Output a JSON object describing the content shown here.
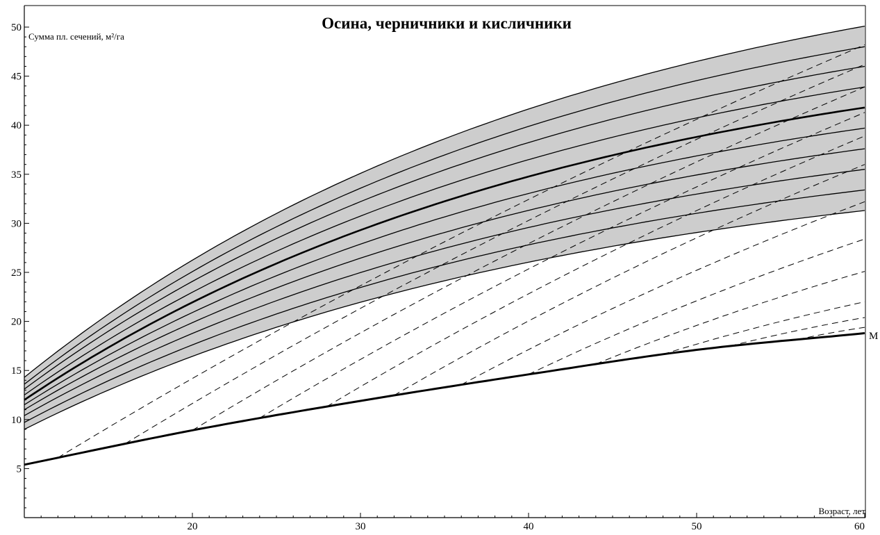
{
  "chart_data": {
    "type": "line",
    "title": "Осина, черничники и кисличники",
    "ylabel": "Сумма пл. сечений, м²/га",
    "xlabel": "Возраст, лет",
    "xlim": [
      10,
      60
    ],
    "ylim": [
      0,
      50
    ],
    "x_ticks": [
      20,
      30,
      40,
      50,
      60
    ],
    "y_ticks": [
      5,
      10,
      15,
      20,
      25,
      30,
      35,
      40,
      45,
      50
    ],
    "grid": false,
    "shaded_region": {
      "color": "#c4c4c4"
    },
    "lower_bound": {
      "name": "M",
      "x": [
        10,
        20,
        30,
        40,
        50,
        60
      ],
      "values": [
        5.4,
        8.9,
        11.9,
        14.6,
        17.1,
        18.8
      ]
    },
    "solid_series": [
      {
        "start": 9.0,
        "end": 31.3,
        "bold": false
      },
      {
        "start": 9.7,
        "end": 33.4,
        "bold": false
      },
      {
        "start": 10.4,
        "end": 35.5,
        "bold": false
      },
      {
        "start": 11.0,
        "end": 37.6,
        "bold": false
      },
      {
        "start": 11.5,
        "end": 39.7,
        "bold": false
      },
      {
        "start": 12.0,
        "end": 41.8,
        "bold": true
      },
      {
        "start": 12.5,
        "end": 43.9,
        "bold": false
      },
      {
        "start": 13.1,
        "end": 46.0,
        "bold": false
      },
      {
        "start": 13.6,
        "end": 48.0,
        "bold": false
      },
      {
        "start": 14.3,
        "end": 50.1,
        "bold": false
      }
    ],
    "dashed_series": [
      {
        "x0": 12,
        "x1": 60,
        "end": 48.2
      },
      {
        "x0": 16,
        "x1": 60,
        "end": 46.2
      },
      {
        "x0": 20,
        "x1": 60,
        "end": 43.9
      },
      {
        "x0": 24,
        "x1": 60,
        "end": 41.3
      },
      {
        "x0": 28,
        "x1": 60,
        "end": 38.9
      },
      {
        "x0": 32,
        "x1": 60,
        "end": 36.0
      },
      {
        "x0": 36,
        "x1": 60,
        "end": 32.2
      },
      {
        "x0": 40,
        "x1": 60,
        "end": 28.4
      },
      {
        "x0": 44,
        "x1": 60,
        "end": 25.1
      },
      {
        "x0": 48,
        "x1": 60,
        "end": 22.0
      },
      {
        "x0": 52,
        "x1": 60,
        "end": 20.4
      },
      {
        "x0": 56,
        "x1": 60,
        "end": 19.4
      }
    ]
  }
}
